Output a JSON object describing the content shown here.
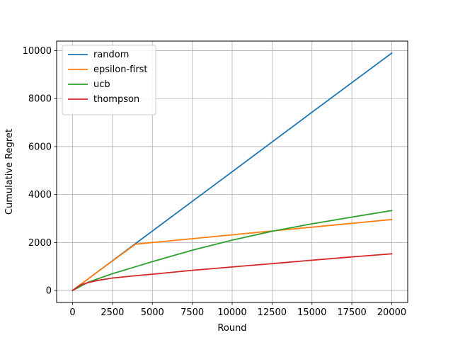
{
  "chart_data": {
    "type": "line",
    "title": "",
    "xlabel": "Round",
    "ylabel": "Cumulative Regret",
    "xlim": [
      -1000,
      21000
    ],
    "ylim": [
      -500,
      10400
    ],
    "xticks": [
      0,
      2500,
      5000,
      7500,
      10000,
      12500,
      15000,
      17500,
      20000
    ],
    "yticks": [
      0,
      2000,
      4000,
      6000,
      8000,
      10000
    ],
    "grid": true,
    "legend_position": "top-left",
    "series": [
      {
        "name": "random",
        "color": "#1f77b4",
        "x": [
          0,
          5000,
          10000,
          15000,
          20000
        ],
        "y": [
          0,
          2480,
          4950,
          7430,
          9900
        ]
      },
      {
        "name": "epsilon-first",
        "color": "#ff7f0e",
        "x": [
          0,
          2000,
          3950,
          5000,
          7500,
          10000,
          12500,
          15000,
          17500,
          20000
        ],
        "y": [
          0,
          990,
          1930,
          2000,
          2160,
          2320,
          2480,
          2640,
          2800,
          2960
        ]
      },
      {
        "name": "ucb",
        "color": "#2ca02c",
        "x": [
          0,
          1000,
          2500,
          4000,
          5000,
          7500,
          10000,
          12500,
          15000,
          17500,
          20000
        ],
        "y": [
          0,
          350,
          700,
          1000,
          1200,
          1680,
          2100,
          2470,
          2780,
          3060,
          3330
        ]
      },
      {
        "name": "thompson",
        "color": "#d62728",
        "x": [
          0,
          500,
          1000,
          1500,
          2500,
          4000,
          5000,
          7500,
          10000,
          12500,
          15000,
          17500,
          20000
        ],
        "y": [
          0,
          230,
          330,
          410,
          520,
          620,
          680,
          840,
          980,
          1120,
          1260,
          1400,
          1530
        ]
      }
    ]
  }
}
